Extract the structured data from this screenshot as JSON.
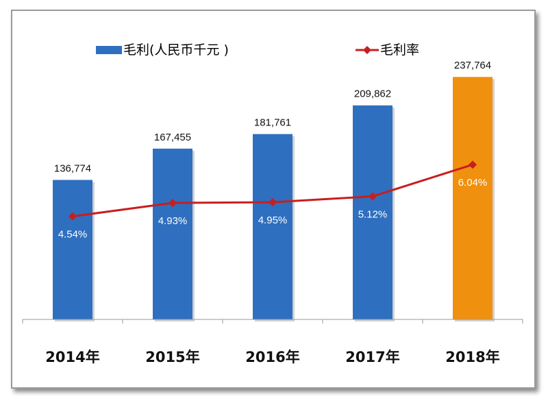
{
  "chart_data": {
    "type": "bar",
    "categories": [
      "2014年",
      "2015年",
      "2016年",
      "2017年",
      "2018年"
    ],
    "series": [
      {
        "name": "毛利(人民币千元 )",
        "kind": "bar",
        "values": [
          136774,
          167455,
          181761,
          209862,
          237764
        ],
        "value_labels": [
          "136,774",
          "167,455",
          "181,761",
          "209,862",
          "237,764"
        ],
        "colors": [
          "#2F6FBF",
          "#2F6FBF",
          "#2F6FBF",
          "#2F6FBF",
          "#F0900F"
        ]
      },
      {
        "name": "毛利率",
        "kind": "line",
        "values": [
          4.54,
          4.93,
          4.95,
          5.12,
          6.04
        ],
        "value_labels": [
          "4.54%",
          "4.93%",
          "4.95%",
          "5.12%",
          "6.04%"
        ],
        "color": "#C81E1E"
      }
    ],
    "legend_position": "top",
    "grid": false,
    "axis_color": "#999999"
  }
}
